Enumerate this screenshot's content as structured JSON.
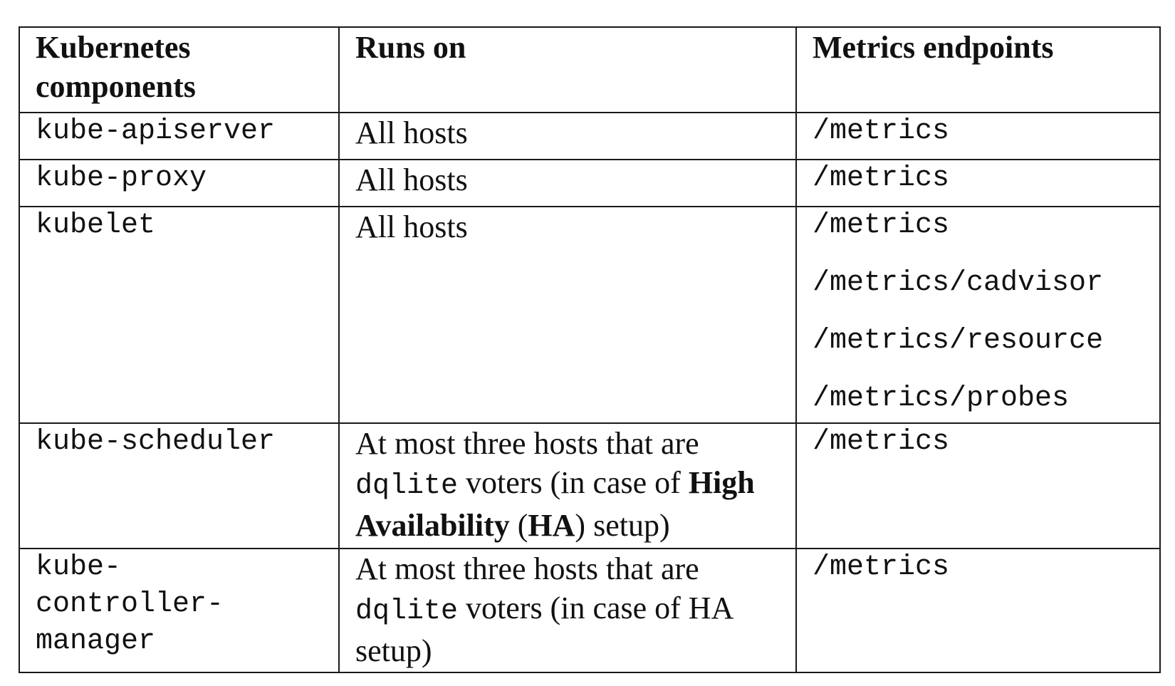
{
  "table": {
    "headers": {
      "component": "Kubernetes components",
      "runs_on": "Runs on",
      "endpoints": "Metrics endpoints"
    },
    "rows": [
      {
        "component": "kube-apiserver",
        "runs_on": "All hosts",
        "endpoints": [
          "/metrics"
        ]
      },
      {
        "component": "kube-proxy",
        "runs_on": "All hosts",
        "endpoints": [
          "/metrics"
        ]
      },
      {
        "component": "kubelet",
        "runs_on": "All hosts",
        "endpoints": [
          "/metrics",
          "/metrics/cadvisor",
          "/metrics/resource",
          "/metrics/probes"
        ]
      },
      {
        "component": "kube-scheduler",
        "runs_on_parts": {
          "p1": "At most three hosts that are ",
          "code": "dqlite",
          "p2": " voters (in case of ",
          "b1": "High Availability",
          "p3": " (",
          "b2": "HA",
          "p4": ") setup)"
        },
        "endpoints": [
          "/metrics"
        ]
      },
      {
        "component_lines": [
          "kube-",
          "controller-",
          "manager"
        ],
        "runs_on_parts": {
          "p1": "At most three hosts that are ",
          "code": "dqlite",
          "p2": " voters (in case of HA setup)"
        },
        "endpoints": [
          "/metrics"
        ]
      }
    ]
  }
}
